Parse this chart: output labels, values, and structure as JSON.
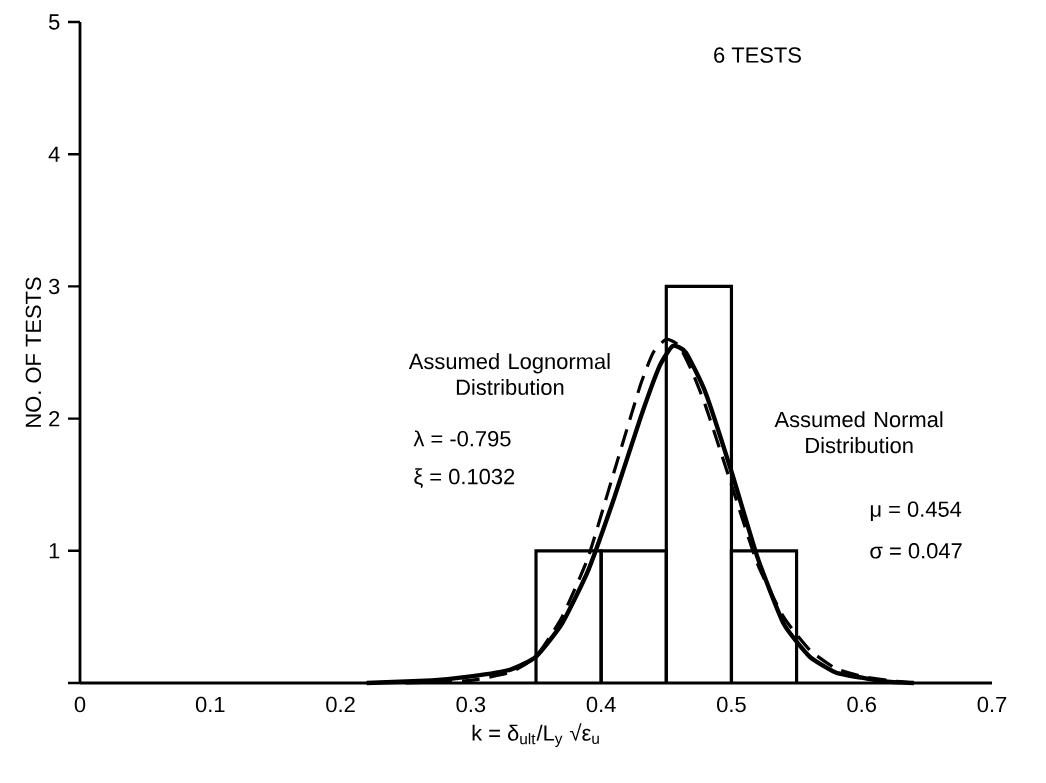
{
  "chart_data": {
    "type": "histogram",
    "title": "6 TESTS",
    "xlabel": "k = δ$_{ult}$/L$_{y}$ √ε$_{u}$",
    "ylabel": "NO. OF TESTS",
    "bins": [
      0.35,
      0.4,
      0.45,
      0.5,
      0.55
    ],
    "values": [
      1,
      1,
      3,
      1
    ],
    "color": "#000000",
    "series": [
      {
        "name": "Assumed Lognormal Distribution",
        "type": "line",
        "line_style": "dashed",
        "color": "#000000",
        "x": [
          0.25,
          0.3,
          0.33,
          0.35,
          0.37,
          0.39,
          0.41,
          0.43,
          0.44,
          0.45,
          0.46,
          0.47,
          0.48,
          0.5,
          0.52,
          0.54,
          0.56,
          0.58,
          0.6,
          0.62,
          0.64
        ],
        "values": [
          0,
          0.02,
          0.08,
          0.2,
          0.5,
          0.95,
          1.6,
          2.25,
          2.5,
          2.6,
          2.55,
          2.35,
          2.1,
          1.5,
          0.9,
          0.5,
          0.25,
          0.11,
          0.05,
          0.02,
          0
        ]
      },
      {
        "name": "Assumed Normal Distribution",
        "type": "line",
        "line_style": "solid",
        "color": "#000000",
        "x": [
          0.22,
          0.27,
          0.3,
          0.33,
          0.35,
          0.37,
          0.39,
          0.41,
          0.43,
          0.445,
          0.455,
          0.465,
          0.48,
          0.5,
          0.52,
          0.54,
          0.56,
          0.58,
          0.6,
          0.62,
          0.64
        ],
        "values": [
          0,
          0.02,
          0.05,
          0.1,
          0.2,
          0.45,
          0.85,
          1.4,
          2.0,
          2.4,
          2.55,
          2.5,
          2.2,
          1.6,
          0.95,
          0.45,
          0.2,
          0.08,
          0.04,
          0.01,
          0
        ]
      }
    ],
    "annotations": [
      "λ = -0.795",
      "ξ = 0.1032",
      "μ = 0.454",
      "σ = 0.047"
    ],
    "xlim": [
      0,
      0.7
    ],
    "ylim": [
      0,
      5
    ],
    "xticks": [
      0,
      0.1,
      0.2,
      0.3,
      0.4,
      0.5,
      0.6,
      0.7
    ],
    "yticks": [
      {
        "value": 0,
        "label": null
      },
      1,
      2,
      3,
      4,
      5
    ]
  }
}
